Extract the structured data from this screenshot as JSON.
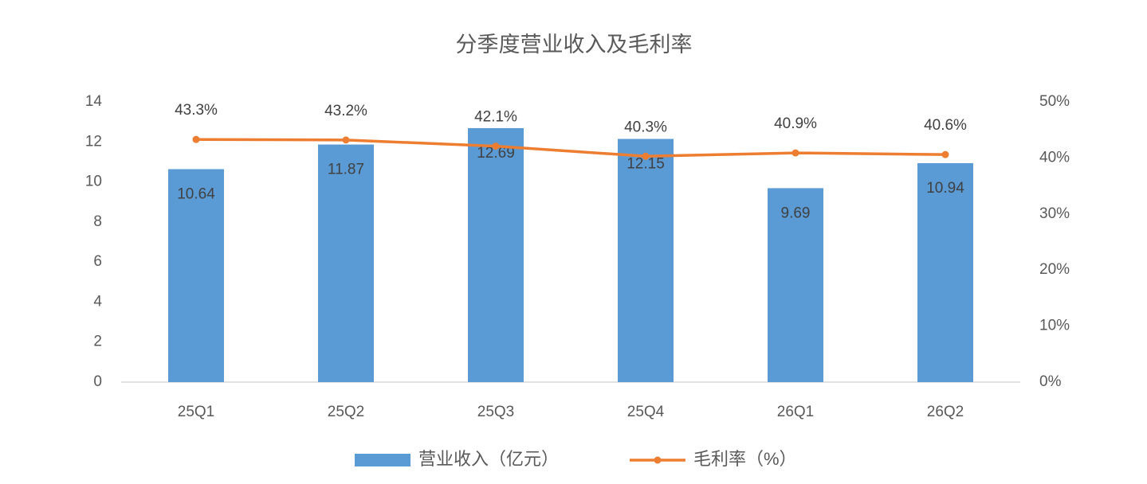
{
  "chart_data": {
    "type": "combo",
    "title": "分季度营业收入及毛利率",
    "categories": [
      "25Q1",
      "25Q2",
      "25Q3",
      "25Q4",
      "26Q1",
      "26Q2"
    ],
    "series": [
      {
        "name": "营业收入（亿元）",
        "type": "bar",
        "color": "#5b9bd5",
        "values": [
          10.64,
          11.87,
          12.69,
          12.15,
          9.69,
          10.94
        ]
      },
      {
        "name": "毛利率（%）",
        "type": "line",
        "axis": "y2",
        "color": "#ed7d31",
        "values": [
          43.3,
          43.2,
          42.1,
          40.3,
          40.9,
          40.6
        ],
        "value_labels": [
          "43.3%",
          "43.2%",
          "42.1%",
          "40.3%",
          "40.9%",
          "40.6%"
        ]
      }
    ],
    "ylim": [
      0,
      14
    ],
    "yticks": [
      0,
      2,
      4,
      6,
      8,
      10,
      12,
      14
    ],
    "y2lim": [
      0,
      50
    ],
    "y2ticks": [
      {
        "value": 0,
        "label": "0%"
      },
      {
        "value": 10,
        "label": "10%"
      },
      {
        "value": 20,
        "label": "20%"
      },
      {
        "value": 30,
        "label": "30%"
      },
      {
        "value": 40,
        "label": "40%"
      },
      {
        "value": 50,
        "label": "50%"
      }
    ],
    "legend": "bottom"
  }
}
